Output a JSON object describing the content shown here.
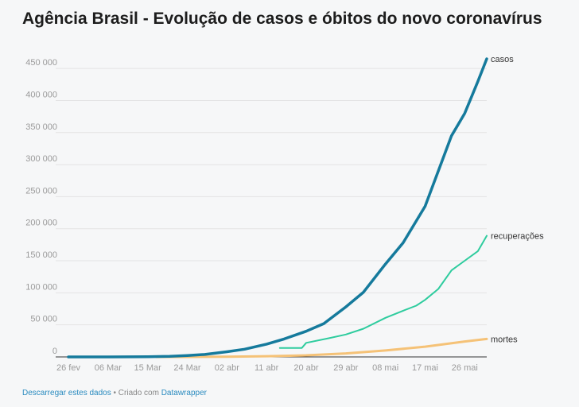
{
  "title": "Agência Brasil - Evolução de casos e óbitos do novo coronavírus",
  "footer": {
    "download_link": "Descarregar estes dados",
    "separator": " • Criado com ",
    "credit_link": "Datawrapper"
  },
  "chart_data": {
    "type": "line",
    "title": "Agência Brasil - Evolução de casos e óbitos do novo coronavírus",
    "xlabel": "",
    "ylabel": "",
    "ylim": [
      0,
      470000
    ],
    "yticks": [
      0,
      50000,
      100000,
      150000,
      200000,
      250000,
      300000,
      350000,
      400000,
      450000
    ],
    "ytick_labels": [
      "0",
      "50 000",
      "100 000",
      "150 000",
      "200 000",
      "250 000",
      "300 000",
      "350 000",
      "400 000",
      "450 000"
    ],
    "xlim": [
      "2020-02-26",
      "2020-05-31"
    ],
    "xticks": [
      "2020-02-26",
      "2020-03-06",
      "2020-03-15",
      "2020-03-24",
      "2020-04-02",
      "2020-04-11",
      "2020-04-20",
      "2020-04-29",
      "2020-05-08",
      "2020-05-17",
      "2020-05-26"
    ],
    "xtick_labels": [
      "26 fev",
      "06 Mar",
      "15 Mar",
      "24 Mar",
      "02 abr",
      "11 abr",
      "20 abr",
      "29 abr",
      "08 mai",
      "17 mai",
      "26 mai"
    ],
    "grid": true,
    "legend": "inline labels at line ends",
    "series": [
      {
        "name": "casos",
        "color": "#157a9c",
        "points": [
          [
            "2020-02-26",
            1
          ],
          [
            "2020-03-06",
            13
          ],
          [
            "2020-03-15",
            200
          ],
          [
            "2020-03-20",
            900
          ],
          [
            "2020-03-24",
            2200
          ],
          [
            "2020-03-28",
            3900
          ],
          [
            "2020-04-02",
            8000
          ],
          [
            "2020-04-06",
            12000
          ],
          [
            "2020-04-11",
            20000
          ],
          [
            "2020-04-15",
            28000
          ],
          [
            "2020-04-20",
            40000
          ],
          [
            "2020-04-24",
            52000
          ],
          [
            "2020-04-29",
            78000
          ],
          [
            "2020-05-03",
            101000
          ],
          [
            "2020-05-08",
            145000
          ],
          [
            "2020-05-12",
            178000
          ],
          [
            "2020-05-17",
            235000
          ],
          [
            "2020-05-20",
            290000
          ],
          [
            "2020-05-23",
            345000
          ],
          [
            "2020-05-26",
            380000
          ],
          [
            "2020-05-29",
            430000
          ],
          [
            "2020-05-31",
            465000
          ]
        ]
      },
      {
        "name": "recuperações",
        "color": "#2ecc9e",
        "points": [
          [
            "2020-04-14",
            14000
          ],
          [
            "2020-04-19",
            14000
          ],
          [
            "2020-04-20",
            22000
          ],
          [
            "2020-04-25",
            29000
          ],
          [
            "2020-04-29",
            35000
          ],
          [
            "2020-05-03",
            44000
          ],
          [
            "2020-05-08",
            61000
          ],
          [
            "2020-05-12",
            72000
          ],
          [
            "2020-05-15",
            80000
          ],
          [
            "2020-05-17",
            89000
          ],
          [
            "2020-05-20",
            106000
          ],
          [
            "2020-05-23",
            135000
          ],
          [
            "2020-05-26",
            150000
          ],
          [
            "2020-05-29",
            165000
          ],
          [
            "2020-05-31",
            189000
          ]
        ]
      },
      {
        "name": "mortes",
        "color": "#f5c277",
        "points": [
          [
            "2020-03-17",
            1
          ],
          [
            "2020-03-24",
            40
          ],
          [
            "2020-04-02",
            300
          ],
          [
            "2020-04-11",
            1100
          ],
          [
            "2020-04-20",
            2500
          ],
          [
            "2020-04-29",
            5500
          ],
          [
            "2020-05-08",
            10000
          ],
          [
            "2020-05-17",
            16000
          ],
          [
            "2020-05-26",
            24000
          ],
          [
            "2020-05-31",
            28000
          ]
        ]
      }
    ]
  }
}
